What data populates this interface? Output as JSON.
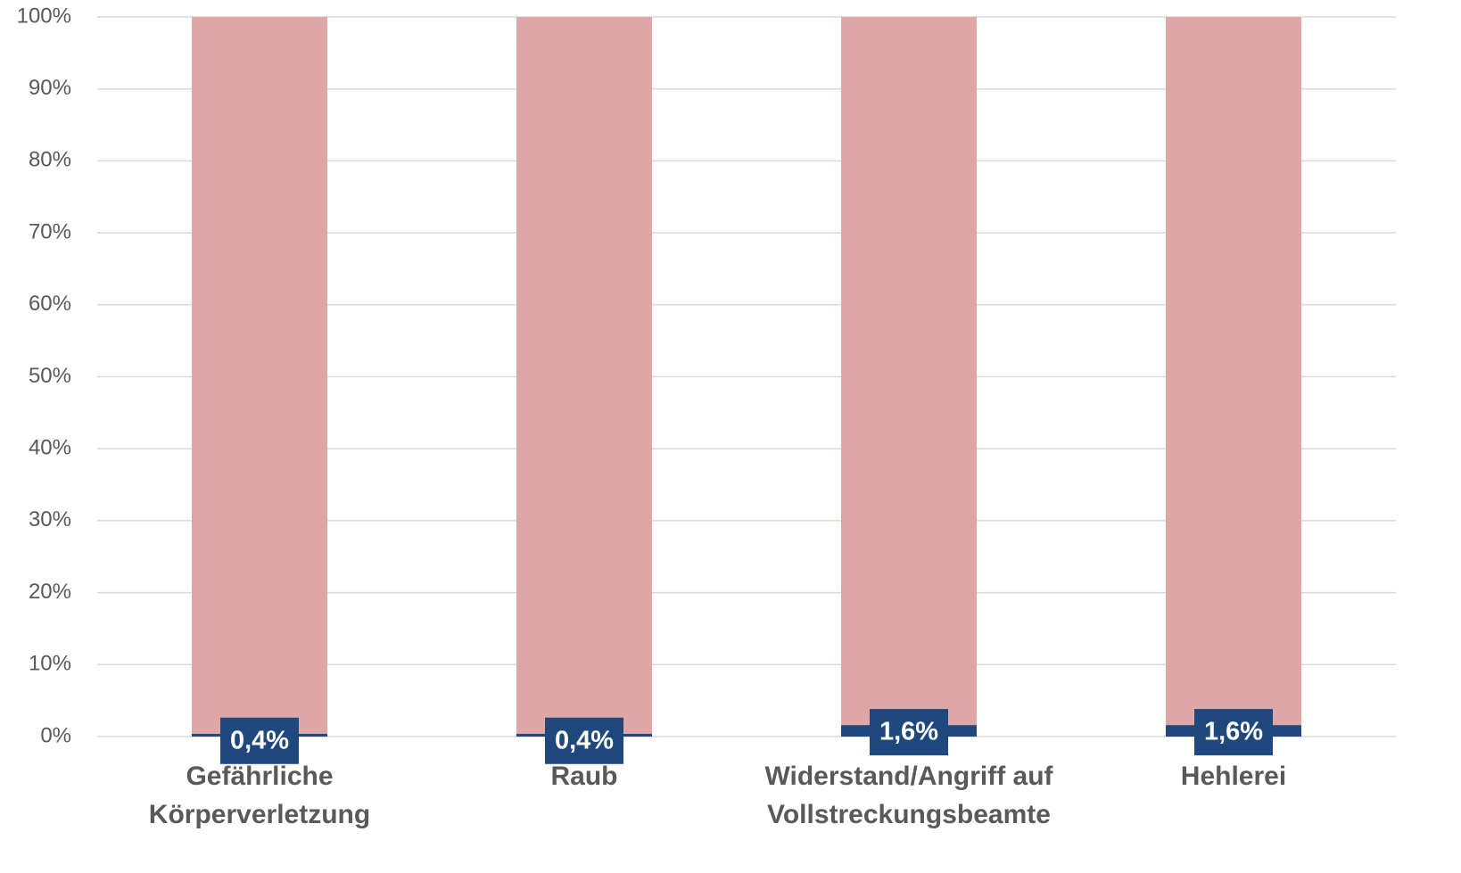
{
  "chart_data": {
    "type": "stacked_bar",
    "categories": [
      [
        "Gefährliche",
        "Körperverletzung"
      ],
      [
        "Raub"
      ],
      [
        "Widerstand/Angriff auf",
        "Vollstreckungsbeamte"
      ],
      [
        "Hehlerei"
      ]
    ],
    "series": [
      {
        "color": "#1f497d",
        "values": [
          0.4,
          0.4,
          1.6,
          1.6
        ],
        "value_labels": [
          "0,4%",
          "0,4%",
          "1,6%",
          "1,6%"
        ]
      },
      {
        "color": "#dfa6a6",
        "values": [
          99.6,
          99.6,
          98.4,
          98.4
        ]
      }
    ],
    "ylim": [
      0,
      100
    ],
    "yticks": [
      {
        "value": 0,
        "label": "0%"
      },
      {
        "value": 10,
        "label": "10%"
      },
      {
        "value": 20,
        "label": "20%"
      },
      {
        "value": 30,
        "label": "30%"
      },
      {
        "value": 40,
        "label": "40%"
      },
      {
        "value": 50,
        "label": "50%"
      },
      {
        "value": 60,
        "label": "60%"
      },
      {
        "value": 70,
        "label": "70%"
      },
      {
        "value": 80,
        "label": "80%"
      },
      {
        "value": 90,
        "label": "90%"
      },
      {
        "value": 100,
        "label": "100%"
      }
    ],
    "grid": true
  }
}
